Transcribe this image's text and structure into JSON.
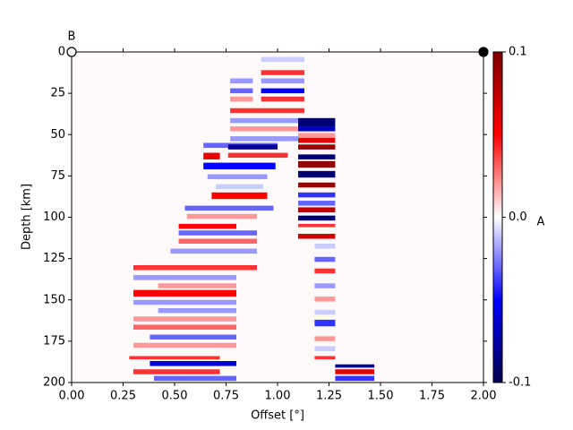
{
  "chart_data": {
    "type": "heatmap",
    "xlabel": "Offset [°]",
    "ylabel": "Depth [km]",
    "annotation": "B",
    "colorbar_label": "A",
    "colormap": "seismic",
    "xlim": [
      0,
      2
    ],
    "ylim": [
      200,
      0
    ],
    "clim": [
      -0.1,
      0.1
    ],
    "xticks": [
      {
        "value": 0,
        "label": "0.00"
      },
      {
        "value": 0.25,
        "label": "0.25"
      },
      {
        "value": 0.5,
        "label": "0.50"
      },
      {
        "value": 0.75,
        "label": "0.75"
      },
      {
        "value": 1,
        "label": "1.00"
      },
      {
        "value": 1.25,
        "label": "1.25"
      },
      {
        "value": 1.5,
        "label": "1.50"
      },
      {
        "value": 1.75,
        "label": "1.75"
      },
      {
        "value": 2,
        "label": "2.00"
      }
    ],
    "yticks": [
      0,
      25,
      50,
      75,
      100,
      125,
      150,
      175,
      200
    ],
    "cticks": [
      {
        "value": 0.1,
        "label": "0.1"
      },
      {
        "value": 0,
        "label": "0.0"
      },
      {
        "value": -0.1,
        "label": "-0.1"
      }
    ],
    "markers": [
      {
        "x": 0,
        "y": 0,
        "color": "#ffffff"
      },
      {
        "x": 2,
        "y": 0,
        "color": "#000000"
      }
    ],
    "cells": [
      [
        0.92,
        1.13,
        3,
        6,
        -0.01
      ],
      [
        0.92,
        1.13,
        11,
        14,
        0.04
      ],
      [
        0.77,
        0.88,
        16,
        19,
        -0.02
      ],
      [
        0.92,
        1.13,
        16,
        19,
        -0.02
      ],
      [
        0.77,
        0.88,
        22,
        25,
        -0.03
      ],
      [
        0.92,
        1.13,
        22,
        25,
        -0.05
      ],
      [
        0.77,
        0.88,
        27,
        30,
        0.02
      ],
      [
        0.92,
        1.13,
        27,
        30,
        0.04
      ],
      [
        0.77,
        1.13,
        34,
        37,
        0.04
      ],
      [
        0.77,
        1.1,
        40,
        43,
        -0.02
      ],
      [
        1.1,
        1.28,
        40,
        45,
        -0.09
      ],
      [
        1.1,
        1.28,
        45,
        48,
        -0.07
      ],
      [
        0.77,
        1.1,
        45,
        48,
        0.02
      ],
      [
        1.1,
        1.28,
        49,
        52,
        0.02
      ],
      [
        0.77,
        1.1,
        51,
        54,
        -0.02
      ],
      [
        1.1,
        1.28,
        52,
        55,
        0.06
      ],
      [
        1.1,
        1.28,
        56,
        59,
        0.09
      ],
      [
        0.64,
        1.0,
        55,
        58,
        -0.03
      ],
      [
        0.76,
        1.0,
        56,
        59,
        -0.08
      ],
      [
        1.1,
        1.28,
        62,
        65,
        -0.09
      ],
      [
        0.64,
        0.72,
        61,
        65,
        0.06
      ],
      [
        0.76,
        1.05,
        61,
        64,
        0.04
      ],
      [
        1.1,
        1.28,
        66,
        70,
        0.09
      ],
      [
        0.64,
        0.99,
        67,
        71,
        -0.05
      ],
      [
        1.1,
        1.28,
        72,
        76,
        -0.09
      ],
      [
        0.66,
        0.95,
        74,
        77,
        -0.02
      ],
      [
        1.1,
        1.28,
        79,
        82,
        0.09
      ],
      [
        0.7,
        0.93,
        80,
        83,
        -0.01
      ],
      [
        0.68,
        0.95,
        85,
        89,
        0.05
      ],
      [
        1.1,
        1.28,
        85,
        88,
        -0.04
      ],
      [
        1.1,
        1.28,
        90,
        93,
        -0.03
      ],
      [
        0.55,
        0.98,
        93,
        96,
        -0.03
      ],
      [
        1.1,
        1.28,
        94,
        97,
        0.08
      ],
      [
        0.56,
        0.9,
        98,
        101,
        0.02
      ],
      [
        1.1,
        1.28,
        99,
        102,
        -0.09
      ],
      [
        0.52,
        0.8,
        104,
        107,
        0.05
      ],
      [
        1.1,
        1.28,
        104,
        106,
        0.04
      ],
      [
        0.52,
        0.9,
        108,
        111,
        -0.03
      ],
      [
        1.1,
        1.28,
        110,
        113,
        0.07
      ],
      [
        0.52,
        0.9,
        113,
        116,
        0.03
      ],
      [
        1.18,
        1.28,
        116,
        119,
        -0.01
      ],
      [
        0.48,
        0.9,
        119,
        122,
        -0.02
      ],
      [
        1.18,
        1.28,
        124,
        127,
        -0.03
      ],
      [
        0.3,
        0.9,
        129,
        132,
        0.04
      ],
      [
        1.18,
        1.28,
        131,
        134,
        0.04
      ],
      [
        0.3,
        0.8,
        135,
        138,
        -0.02
      ],
      [
        0.42,
        0.8,
        140,
        143,
        0.02
      ],
      [
        1.18,
        1.28,
        140,
        143,
        -0.02
      ],
      [
        0.3,
        0.8,
        144,
        148,
        0.05
      ],
      [
        1.18,
        1.28,
        148,
        151,
        0.02
      ],
      [
        0.3,
        0.8,
        150,
        153,
        -0.02
      ],
      [
        0.42,
        0.8,
        155,
        158,
        -0.02
      ],
      [
        1.18,
        1.28,
        156,
        159,
        -0.01
      ],
      [
        0.3,
        0.8,
        160,
        163,
        0.02
      ],
      [
        1.18,
        1.28,
        162,
        166,
        -0.04
      ],
      [
        0.3,
        0.8,
        165,
        168,
        0.03
      ],
      [
        0.38,
        0.8,
        171,
        174,
        -0.03
      ],
      [
        1.18,
        1.28,
        172,
        175,
        0.02
      ],
      [
        0.3,
        0.8,
        176,
        179,
        0.02
      ],
      [
        1.18,
        1.28,
        178,
        181,
        -0.01
      ],
      [
        0.28,
        0.72,
        184,
        186,
        0.04
      ],
      [
        1.18,
        1.28,
        184,
        186,
        0.04
      ],
      [
        0.38,
        0.8,
        187,
        190,
        -0.06
      ],
      [
        1.28,
        1.47,
        189,
        191,
        -0.08
      ],
      [
        0.3,
        0.72,
        192,
        195,
        0.04
      ],
      [
        1.28,
        1.47,
        192,
        195,
        0.06
      ],
      [
        0.4,
        0.8,
        196,
        199,
        -0.03
      ],
      [
        1.28,
        1.47,
        196,
        199,
        -0.04
      ]
    ]
  }
}
